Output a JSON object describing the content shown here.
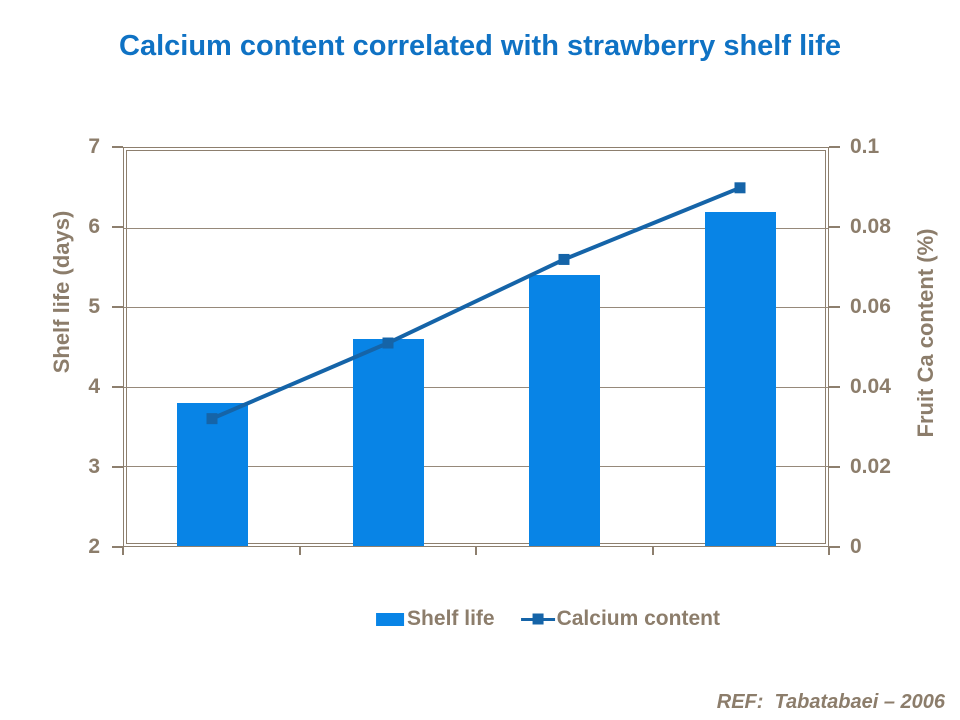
{
  "reference": "REF:  Tabatabaei – 2006",
  "colors": {
    "title": "#0F72C4",
    "bar": "#0884E6",
    "line": "#1564A8",
    "text_brown": "#8C7D6B",
    "grid_line": "#96897A",
    "axis_line": "#8D7F6E"
  },
  "chart_data": {
    "type": "combo",
    "title": "Calcium content correlated with strawberry shelf life",
    "series": [
      {
        "name": "Shelf life",
        "type": "bar",
        "axis": "left",
        "values": [
          3.8,
          4.6,
          5.4,
          6.2
        ]
      },
      {
        "name": "Calcium content",
        "type": "line",
        "axis": "right",
        "values": [
          0.032,
          0.051,
          0.072,
          0.09
        ]
      }
    ],
    "left_axis": {
      "label": "Shelf life (days)",
      "min": 2,
      "max": 7,
      "ticks_top_to_bottom": [
        "7",
        "6",
        "5",
        "4",
        "3",
        "2"
      ]
    },
    "right_axis": {
      "label": "Fruit Ca content (%)",
      "min": 0,
      "max": 0.1,
      "ticks_top_to_bottom": [
        "0.1",
        "0.08",
        "0.06",
        "0.04",
        "0.02",
        "0"
      ]
    },
    "x_axis": {
      "category_count": 4,
      "tick_labels_visible": false
    },
    "grid": true,
    "legend_position": "bottom"
  }
}
